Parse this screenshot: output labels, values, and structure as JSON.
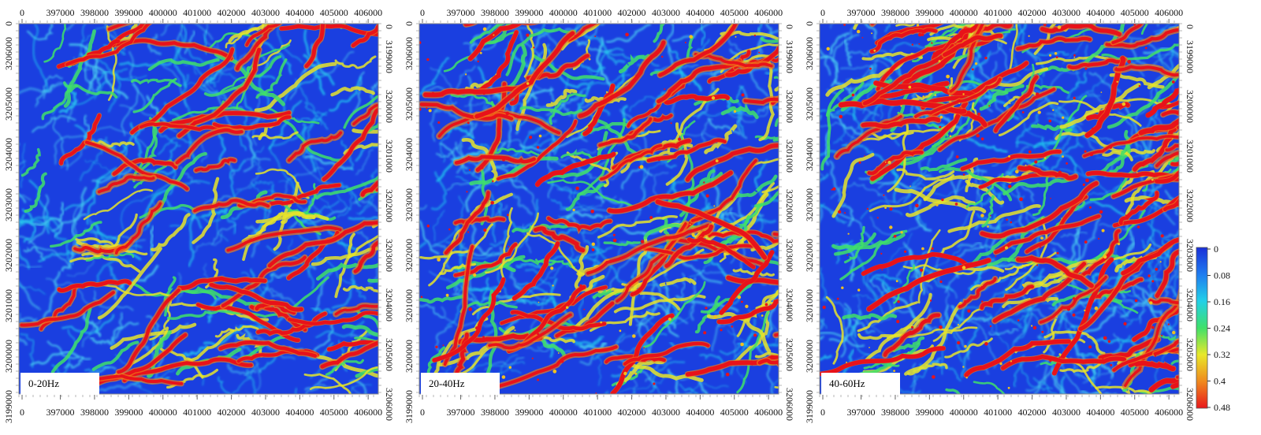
{
  "panels": [
    {
      "label": "0-20Hz",
      "seed": 11,
      "density": 0.55
    },
    {
      "label": "20-40Hz",
      "seed": 23,
      "density": 0.8
    },
    {
      "label": "40-60Hz",
      "seed": 37,
      "density": 1.0
    }
  ],
  "axes": {
    "x_top_labels": [
      "0",
      "397000",
      "398000",
      "399000",
      "400000",
      "401000",
      "402000",
      "403000",
      "404000",
      "405000",
      "406000"
    ],
    "x_bottom_labels": [
      "0",
      "397000",
      "398000",
      "399000",
      "400000",
      "401000",
      "402000",
      "403000",
      "404000",
      "405000",
      "406000"
    ],
    "y_left_labels": [
      "3206000",
      "3205000",
      "3204000",
      "3203000",
      "3202000",
      "3201000",
      "3200000",
      "3199000"
    ],
    "y_right_labels": [
      "3199000",
      "3200000",
      "3201000",
      "3202000",
      "3203000",
      "3204000",
      "3205000",
      "3206000"
    ]
  },
  "colorbar": {
    "ticks": [
      "0",
      "0.08",
      "0.16",
      "0.24",
      "0.32",
      "0.4",
      "0.48"
    ],
    "colors": [
      "#1a2fd8",
      "#1f7cf0",
      "#22d0e8",
      "#3ee06a",
      "#e8e82a",
      "#f08a1e",
      "#e8181c"
    ]
  }
}
